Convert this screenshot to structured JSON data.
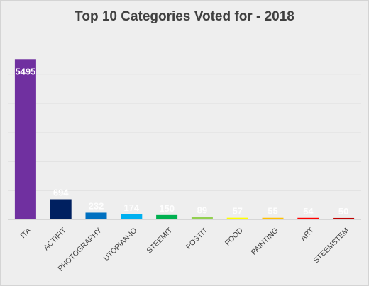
{
  "chart_data": {
    "type": "bar",
    "title": "Top 10 Categories Voted for - 2018",
    "xlabel": "",
    "ylabel": "",
    "ylim": [
      0,
      6500
    ],
    "grid": true,
    "categories": [
      "ITA",
      "ACTIFIT",
      "PHOTOGRAPHY",
      "UTOPIAN-IO",
      "STEEMIT",
      "POSTIT",
      "FOOD",
      "PAINTING",
      "ART",
      "STEEMSTEM"
    ],
    "values": [
      5495,
      694,
      232,
      174,
      150,
      89,
      57,
      55,
      54,
      50
    ],
    "data_labels": [
      "5495",
      "694",
      "232",
      "174",
      "150",
      "89",
      "57",
      "55",
      "54",
      "50"
    ],
    "colors": [
      "#7030a0",
      "#002060",
      "#0070c0",
      "#00b0f0",
      "#00b050",
      "#92d050",
      "#ffff00",
      "#ffc000",
      "#ff0000",
      "#c00000"
    ],
    "gridline_color": "#d0d0d0",
    "axis_color": "#bfbfbf"
  }
}
